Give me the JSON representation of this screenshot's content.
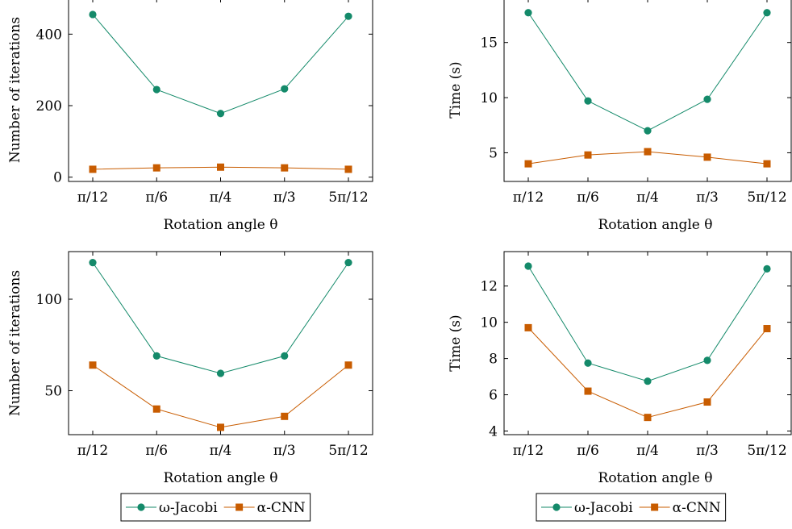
{
  "chart_data": [
    {
      "type": "line",
      "categories": [
        "π/12",
        "π/6",
        "π/4",
        "π/3",
        "5π/12"
      ],
      "xlabel": "Rotation angle θ",
      "ylabel": "Number of iterations",
      "ylim": [
        -12,
        500
      ],
      "yticks": [
        0,
        200,
        400
      ],
      "grid": false,
      "series": [
        {
          "name": "ω-Jacobi",
          "color": "#148a6a",
          "marker": "circle",
          "values": [
            455,
            245,
            178,
            247,
            450
          ]
        },
        {
          "name": "α-CNN",
          "color": "#c85c00",
          "marker": "square",
          "values": [
            22,
            26,
            28,
            26,
            22
          ]
        }
      ]
    },
    {
      "type": "line",
      "categories": [
        "π/12",
        "π/6",
        "π/4",
        "π/3",
        "5π/12"
      ],
      "xlabel": "Rotation angle θ",
      "ylabel": "Time (s)",
      "ylim": [
        2.4,
        19.0
      ],
      "yticks": [
        5,
        10,
        15
      ],
      "grid": false,
      "series": [
        {
          "name": "ω-Jacobi",
          "color": "#148a6a",
          "marker": "circle",
          "values": [
            17.7,
            9.7,
            7.0,
            9.85,
            17.7
          ]
        },
        {
          "name": "α-CNN",
          "color": "#c85c00",
          "marker": "square",
          "values": [
            4.0,
            4.8,
            5.1,
            4.6,
            4.0
          ]
        }
      ]
    },
    {
      "type": "line",
      "categories": [
        "π/12",
        "π/6",
        "π/4",
        "π/3",
        "5π/12"
      ],
      "xlabel": "Rotation angle θ",
      "ylabel": "Number of iterations",
      "ylim": [
        26,
        126
      ],
      "yticks": [
        50,
        100
      ],
      "grid": false,
      "series": [
        {
          "name": "ω-Jacobi",
          "color": "#148a6a",
          "marker": "circle",
          "values": [
            120,
            69,
            59.5,
            69,
            120
          ]
        },
        {
          "name": "α-CNN",
          "color": "#c85c00",
          "marker": "square",
          "values": [
            64,
            40,
            30,
            36,
            64
          ]
        }
      ]
    },
    {
      "type": "line",
      "categories": [
        "π/12",
        "π/6",
        "π/4",
        "π/3",
        "5π/12"
      ],
      "xlabel": "Rotation angle θ",
      "ylabel": "Time (s)",
      "ylim": [
        3.8,
        13.9
      ],
      "yticks": [
        4,
        6,
        8,
        10,
        12
      ],
      "grid": false,
      "series": [
        {
          "name": "ω-Jacobi",
          "color": "#148a6a",
          "marker": "circle",
          "values": [
            13.1,
            7.75,
            6.75,
            7.9,
            12.95
          ]
        },
        {
          "name": "α-CNN",
          "color": "#c85c00",
          "marker": "square",
          "values": [
            9.7,
            6.2,
            4.75,
            5.6,
            9.65
          ]
        }
      ]
    }
  ],
  "legends": [
    {
      "items": [
        {
          "label": "ω-Jacobi",
          "color": "#148a6a",
          "marker": "circle"
        },
        {
          "label": "α-CNN",
          "color": "#c85c00",
          "marker": "square"
        }
      ]
    },
    {
      "items": [
        {
          "label": "ω-Jacobi",
          "color": "#148a6a",
          "marker": "circle"
        },
        {
          "label": "α-CNN",
          "color": "#c85c00",
          "marker": "square"
        }
      ]
    }
  ]
}
